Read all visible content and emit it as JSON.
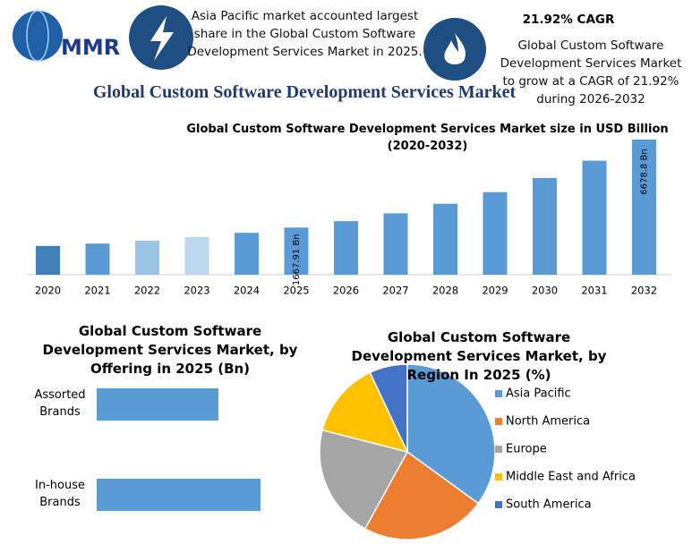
{
  "logo": "MMR",
  "callout_left": "Asia Pacific market accounted largest share in the Global Custom Software Development Services Market in 2025.",
  "callout_right": {
    "title": "21.92% CAGR",
    "text": "Global Custom Software Development Services Market to grow at a CAGR of 21.92% during 2026-2032"
  },
  "title": "Global Custom Software Development Services Market",
  "chart_data": [
    {
      "type": "bar",
      "title": "Global Custom Software Development Services Market size in USD Billion (2020-2032)",
      "categories": [
        "2020",
        "2021",
        "2022",
        "2023",
        "2024",
        "2025",
        "2026",
        "2027",
        "2028",
        "2029",
        "2030",
        "2031",
        "2032"
      ],
      "values": [
        619,
        755,
        920,
        1122,
        1368,
        1667.91,
        2033,
        2479,
        3022,
        3685,
        4492,
        5477,
        6678.8
      ],
      "value_labels": [
        null,
        null,
        null,
        null,
        null,
        "1667.91 Bn",
        null,
        null,
        null,
        null,
        null,
        null,
        "6678.8 Bn"
      ],
      "colors": [
        "#3f7fb8",
        "#5b9bd5",
        "#9dc3e6",
        "#bdd7ee",
        "#5b9bd5",
        "#5b9bd5",
        "#5b9bd5",
        "#5b9bd5",
        "#5b9bd5",
        "#5b9bd5",
        "#5b9bd5",
        "#5b9bd5",
        "#5b9bd5"
      ]
    },
    {
      "type": "hbar",
      "title": "Global Custom Software Development Services Market, by Offering in 2025 (Bn)",
      "categories": [
        "Assorted Brands",
        "In-house Brands"
      ],
      "values": [
        711,
        957
      ],
      "color": "#5b9bd5"
    },
    {
      "type": "pie",
      "title": "Global Custom Software Development Services Market, by Region In 2025 (%)",
      "categories": [
        "Asia Pacific",
        "North America",
        "Europe",
        "Middle East and Africa",
        "South America"
      ],
      "values": [
        35,
        23,
        21,
        14,
        7
      ],
      "colors": [
        "#5b9bd5",
        "#ed7d31",
        "#a5a5a5",
        "#ffc000",
        "#4472c4"
      ],
      "legend": "right"
    }
  ]
}
